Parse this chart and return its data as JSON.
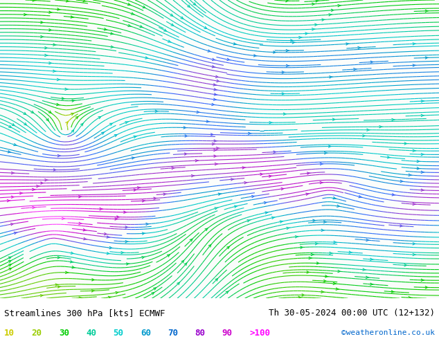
{
  "title_left": "Streamlines 300 hPa [kts] ECMWF",
  "title_right": "Th 30-05-2024 00:00 UTC (12+132)",
  "credit": "©weatheronline.co.uk",
  "legend_values": [
    "10",
    "20",
    "30",
    "40",
    "50",
    "60",
    "70",
    "80",
    "90",
    ">100"
  ],
  "legend_colors": [
    "#cccc00",
    "#99cc00",
    "#00cc00",
    "#00cc99",
    "#00cccc",
    "#0099cc",
    "#0066cc",
    "#9900cc",
    "#cc00cc",
    "#ff00ff"
  ],
  "bg_color": "#ffffff",
  "speed_colormap": [
    "#cccc00",
    "#99cc00",
    "#00cc00",
    "#00cc99",
    "#00cccc",
    "#0099cc",
    "#0066cc",
    "#9900cc",
    "#cc00cc",
    "#ff00ff"
  ],
  "title_fontsize": 9,
  "credit_fontsize": 8,
  "legend_fontsize": 9
}
